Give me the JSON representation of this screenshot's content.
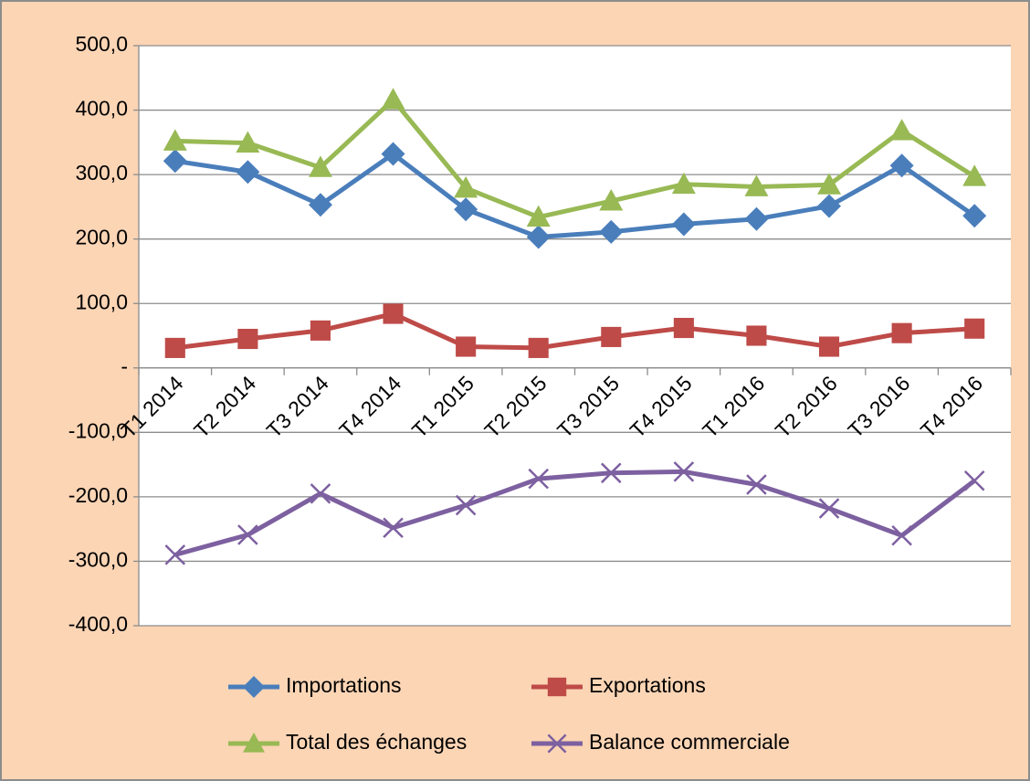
{
  "chart_data": {
    "type": "line",
    "categories": [
      "T1  2014",
      "T2  2014",
      "T3  2014",
      "T4  2014",
      "T1  2015",
      "T2  2015",
      "T3  2015",
      "T4  2015",
      "T1  2016",
      "T2  2016",
      "T3  2016",
      "T4  2016"
    ],
    "series": [
      {
        "name": "Importations",
        "color": "#4a7ebb",
        "marker": "diamond",
        "values": [
          321,
          304,
          253,
          332,
          246,
          203,
          211,
          223,
          231,
          251,
          314,
          236
        ]
      },
      {
        "name": "Exportations",
        "color": "#be4b48",
        "marker": "square",
        "values": [
          31,
          45,
          58,
          84,
          33,
          31,
          48,
          62,
          50,
          33,
          54,
          61
        ]
      },
      {
        "name": "Total des échanges",
        "color": "#98b954",
        "marker": "triangle",
        "values": [
          352,
          349,
          311,
          416,
          279,
          234,
          259,
          285,
          281,
          284,
          368,
          297
        ]
      },
      {
        "name": "Balance commerciale",
        "color": "#7d60a0",
        "marker": "x",
        "values": [
          -290,
          -259,
          -195,
          -248,
          -213,
          -172,
          -163,
          -161,
          -181,
          -218,
          -260,
          -175
        ]
      }
    ],
    "ylim": [
      -400,
      500
    ],
    "yticks": [
      {
        "value": -400,
        "label": "-400,0"
      },
      {
        "value": -300,
        "label": "-300,0"
      },
      {
        "value": -200,
        "label": "-200,0"
      },
      {
        "value": -100,
        "label": "-100,0"
      },
      {
        "value": 0,
        "label": "-"
      },
      {
        "value": 100,
        "label": "100,0"
      },
      {
        "value": 200,
        "label": "200,0"
      },
      {
        "value": 300,
        "label": "300,0"
      },
      {
        "value": 400,
        "label": "400,0"
      },
      {
        "value": 500,
        "label": "500,0"
      }
    ],
    "grid": true
  }
}
